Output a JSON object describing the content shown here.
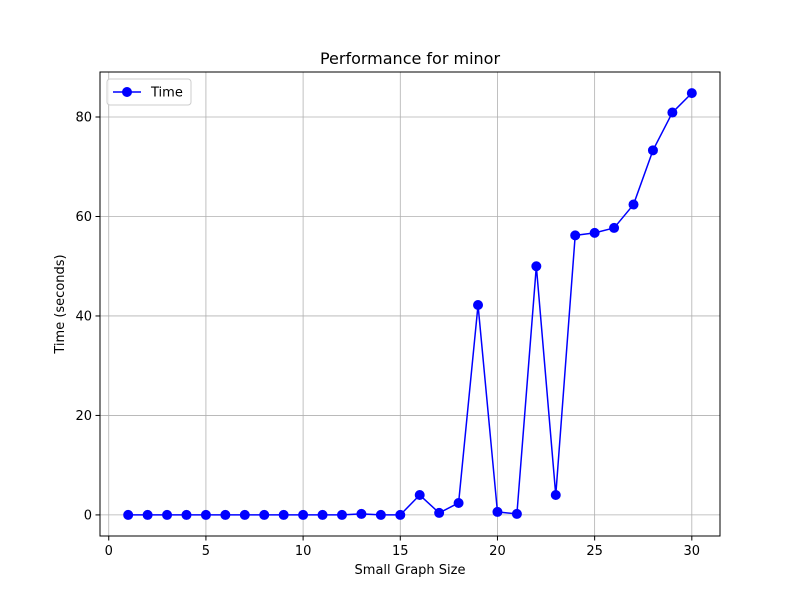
{
  "chart_data": {
    "type": "line",
    "title": "Performance for minor",
    "xlabel": "Small Graph Size",
    "ylabel": "Time (seconds)",
    "xlim": [
      -0.45,
      31.45
    ],
    "ylim": [
      -4.24,
      89.05
    ],
    "x_ticks": [
      0,
      5,
      10,
      15,
      20,
      25,
      30
    ],
    "x_tick_labels": [
      "0",
      "5",
      "10",
      "15",
      "20",
      "25",
      "30"
    ],
    "y_ticks": [
      0,
      20,
      40,
      60,
      80
    ],
    "y_tick_labels": [
      "0",
      "20",
      "40",
      "60",
      "80"
    ],
    "grid": true,
    "legend_position": "top-left",
    "series": [
      {
        "name": "Time",
        "color": "#0000ff",
        "marker": "circle",
        "x": [
          1,
          2,
          3,
          4,
          5,
          6,
          7,
          8,
          9,
          10,
          11,
          12,
          13,
          14,
          15,
          16,
          17,
          18,
          19,
          20,
          21,
          22,
          23,
          24,
          25,
          26,
          27,
          28,
          29,
          30
        ],
        "y": [
          0.0,
          0.0,
          0.0,
          0.0,
          0.0,
          0.0,
          0.0,
          0.0,
          0.0,
          0.0,
          0.0,
          0.0,
          0.2,
          0.0,
          0.0,
          4.0,
          0.4,
          2.4,
          42.2,
          0.6,
          0.2,
          50.0,
          4.0,
          56.2,
          56.7,
          57.7,
          62.4,
          73.3,
          80.9,
          84.8
        ]
      }
    ]
  }
}
